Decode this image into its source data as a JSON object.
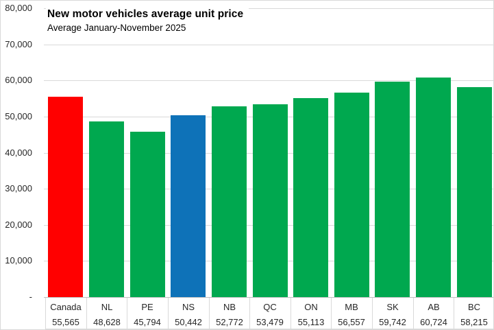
{
  "chart_data": {
    "type": "bar",
    "title": "New motor vehicles average unit price",
    "subtitle": "Average January-November 2025",
    "categories": [
      "Canada",
      "NL",
      "PE",
      "NS",
      "NB",
      "QC",
      "ON",
      "MB",
      "SK",
      "AB",
      "BC"
    ],
    "values": [
      55565,
      48628,
      45794,
      50442,
      52772,
      53479,
      55113,
      56557,
      59742,
      60724,
      58215
    ],
    "value_labels": [
      "55,565",
      "48,628",
      "45,794",
      "50,442",
      "52,772",
      "53,479",
      "55,113",
      "56,557",
      "59,742",
      "60,724",
      "58,215"
    ],
    "bar_colors": [
      "#ff0000",
      "#00a84f",
      "#00a84f",
      "#0e72b8",
      "#00a84f",
      "#00a84f",
      "#00a84f",
      "#00a84f",
      "#00a84f",
      "#00a84f",
      "#00a84f"
    ],
    "highlight_colors": {
      "canada": "#ff0000",
      "nova_scotia": "#0e72b8",
      "provinces_default": "#00a84f"
    },
    "ylim": [
      0,
      80000
    ],
    "ytick_interval": 10000,
    "yticks": [
      {
        "value": 80000,
        "label": "80,000"
      },
      {
        "value": 70000,
        "label": "70,000"
      },
      {
        "value": 60000,
        "label": "60,000"
      },
      {
        "value": 50000,
        "label": "50,000"
      },
      {
        "value": 40000,
        "label": "40,000"
      },
      {
        "value": 30000,
        "label": "30,000"
      },
      {
        "value": 20000,
        "label": "20,000"
      },
      {
        "value": 10000,
        "label": "10,000"
      },
      {
        "value": 0,
        "label": "-"
      }
    ],
    "grid": "horizontal",
    "legend": "none",
    "xlabel": "",
    "ylabel": ""
  }
}
